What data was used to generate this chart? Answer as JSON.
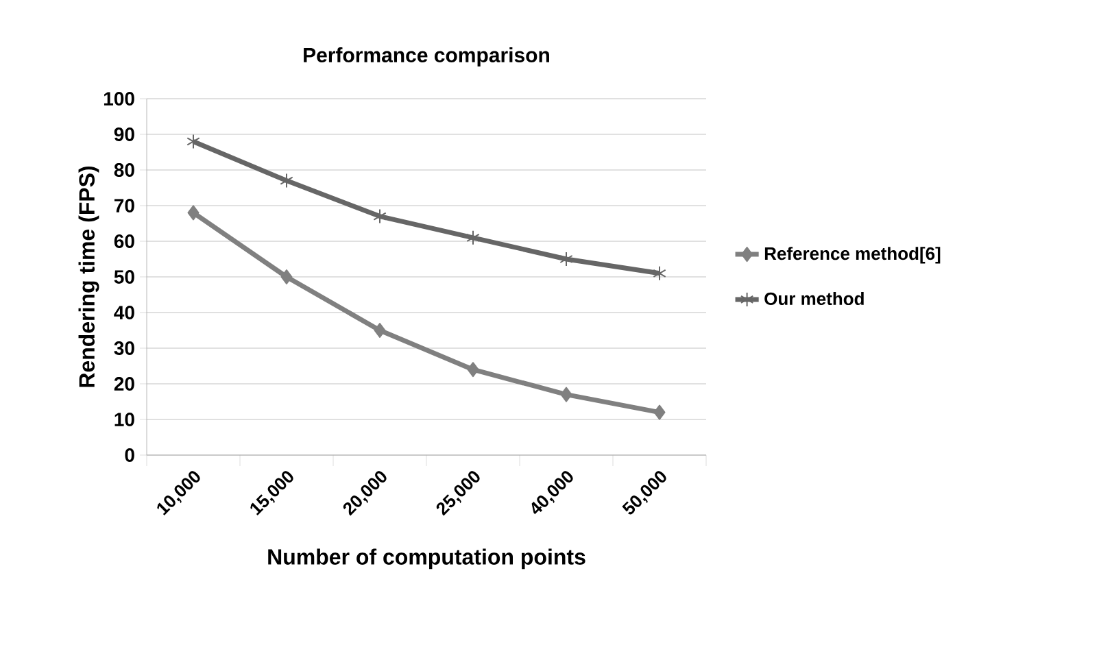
{
  "chart_data": {
    "type": "line",
    "title": "Performance comparison",
    "xlabel": "Number of computation points",
    "ylabel": "Rendering time (FPS)",
    "categories": [
      "10,000",
      "15,000",
      "20,000",
      "25,000",
      "40,000",
      "50,000"
    ],
    "series": [
      {
        "name": "Reference method[6]",
        "color": "#808080",
        "marker": "diamond",
        "values": [
          68,
          50,
          35,
          24,
          17,
          12
        ]
      },
      {
        "name": "Our method",
        "color": "#666666",
        "marker": "cross",
        "values": [
          88,
          77,
          67,
          61,
          55,
          51
        ]
      }
    ],
    "ylim": [
      0,
      100
    ],
    "yticks": [
      0,
      10,
      20,
      30,
      40,
      50,
      60,
      70,
      80,
      90,
      100
    ],
    "grid": "y",
    "legend": "right",
    "line_style": "solid"
  }
}
